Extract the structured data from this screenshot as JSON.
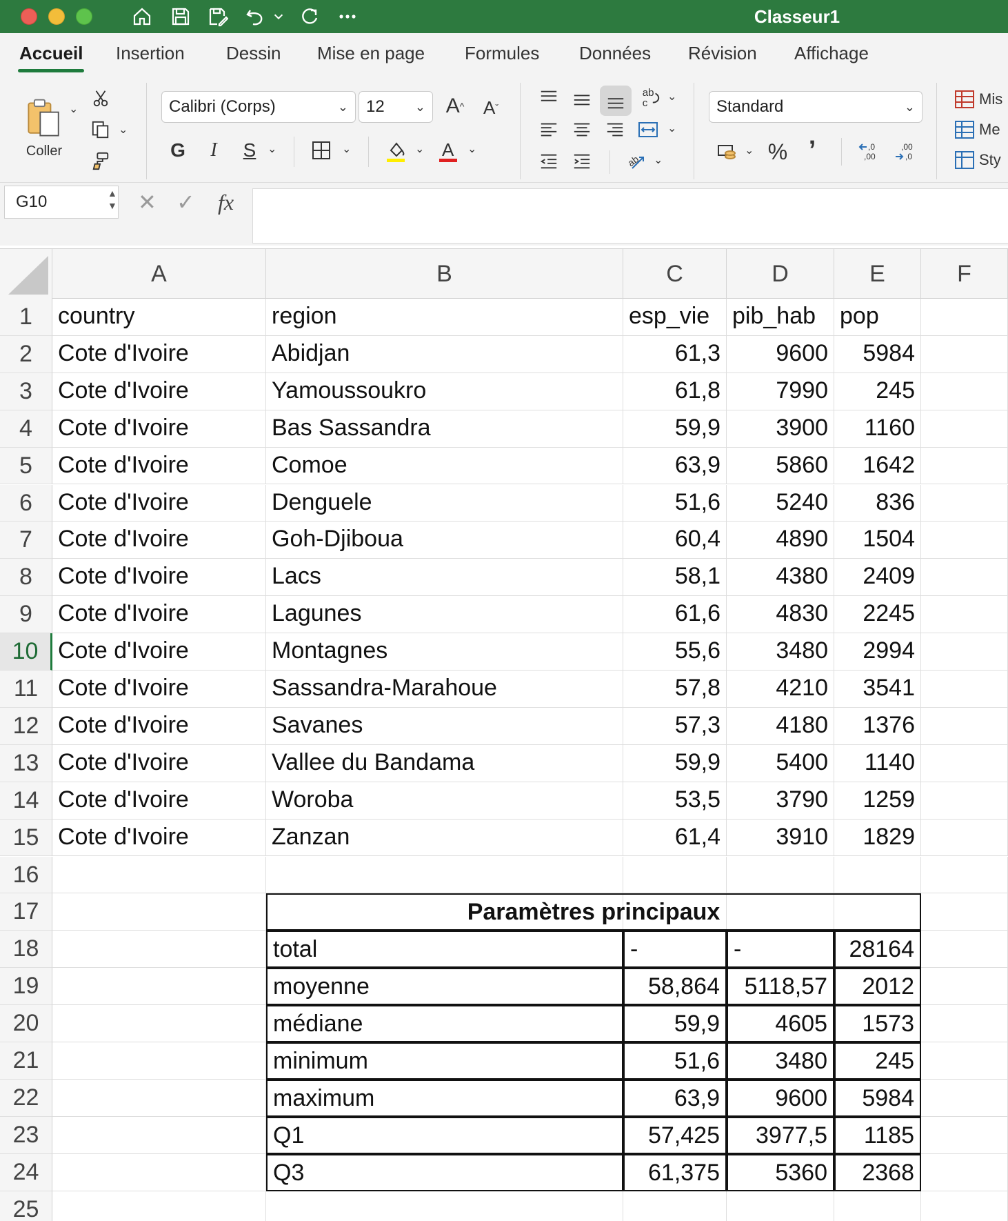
{
  "window": {
    "title": "Classeur1"
  },
  "ribbon": {
    "tabs": [
      "Accueil",
      "Insertion",
      "Dessin",
      "Mise en page",
      "Formules",
      "Données",
      "Révision",
      "Affichage"
    ],
    "active_tab": "Accueil",
    "paste_label": "Coller",
    "font_name": "Calibri (Corps)",
    "font_size": "12",
    "bold_label": "G",
    "italic_label": "I",
    "underline_label": "S",
    "number_format": "Standard",
    "styles": [
      "Mis",
      "Me",
      "Sty"
    ],
    "colors": {
      "accent": "#2d7a3f",
      "highlight": "#ffee00",
      "font_color": "#e02020"
    }
  },
  "formula_bar": {
    "name_box": "G10",
    "formula": ""
  },
  "columns": [
    "A",
    "B",
    "C",
    "D",
    "E",
    "F"
  ],
  "rows": [
    "1",
    "2",
    "3",
    "4",
    "5",
    "6",
    "7",
    "8",
    "9",
    "10",
    "11",
    "12",
    "13",
    "14",
    "15",
    "16",
    "17",
    "18",
    "19",
    "20",
    "21",
    "22",
    "23",
    "24",
    "25"
  ],
  "selected_row": "10",
  "table": {
    "header": [
      "country",
      "region",
      "esp_vie",
      "pib_hab",
      "pop"
    ],
    "data": [
      [
        "Cote d'Ivoire",
        "Abidjan",
        "61,3",
        "9600",
        "5984"
      ],
      [
        "Cote d'Ivoire",
        "Yamoussoukro",
        "61,8",
        "7990",
        "245"
      ],
      [
        "Cote d'Ivoire",
        "Bas Sassandra",
        "59,9",
        "3900",
        "1160"
      ],
      [
        "Cote d'Ivoire",
        "Comoe",
        "63,9",
        "5860",
        "1642"
      ],
      [
        "Cote d'Ivoire",
        "Denguele",
        "51,6",
        "5240",
        "836"
      ],
      [
        "Cote d'Ivoire",
        "Goh-Djiboua",
        "60,4",
        "4890",
        "1504"
      ],
      [
        "Cote d'Ivoire",
        "Lacs",
        "58,1",
        "4380",
        "2409"
      ],
      [
        "Cote d'Ivoire",
        "Lagunes",
        "61,6",
        "4830",
        "2245"
      ],
      [
        "Cote d'Ivoire",
        "Montagnes",
        "55,6",
        "3480",
        "2994"
      ],
      [
        "Cote d'Ivoire",
        "Sassandra-Marahoue",
        "57,8",
        "4210",
        "3541"
      ],
      [
        "Cote d'Ivoire",
        "Savanes",
        "57,3",
        "4180",
        "1376"
      ],
      [
        "Cote d'Ivoire",
        "Vallee du Bandama",
        "59,9",
        "5400",
        "1140"
      ],
      [
        "Cote d'Ivoire",
        "Woroba",
        "53,5",
        "3790",
        "1259"
      ],
      [
        "Cote d'Ivoire",
        "Zanzan",
        "61,4",
        "3910",
        "1829"
      ]
    ]
  },
  "summary": {
    "title": "Paramètres principaux",
    "rows": [
      [
        "total",
        "-",
        "-",
        "28164"
      ],
      [
        "moyenne",
        "58,864",
        "5118,57",
        "2012"
      ],
      [
        "médiane",
        "59,9",
        "4605",
        "1573"
      ],
      [
        "minimum",
        "51,6",
        "3480",
        "245"
      ],
      [
        "maximum",
        "63,9",
        "9600",
        "5984"
      ],
      [
        "Q1",
        "57,425",
        "3977,5",
        "1185"
      ],
      [
        "Q3",
        "61,375",
        "5360",
        "2368"
      ]
    ]
  }
}
